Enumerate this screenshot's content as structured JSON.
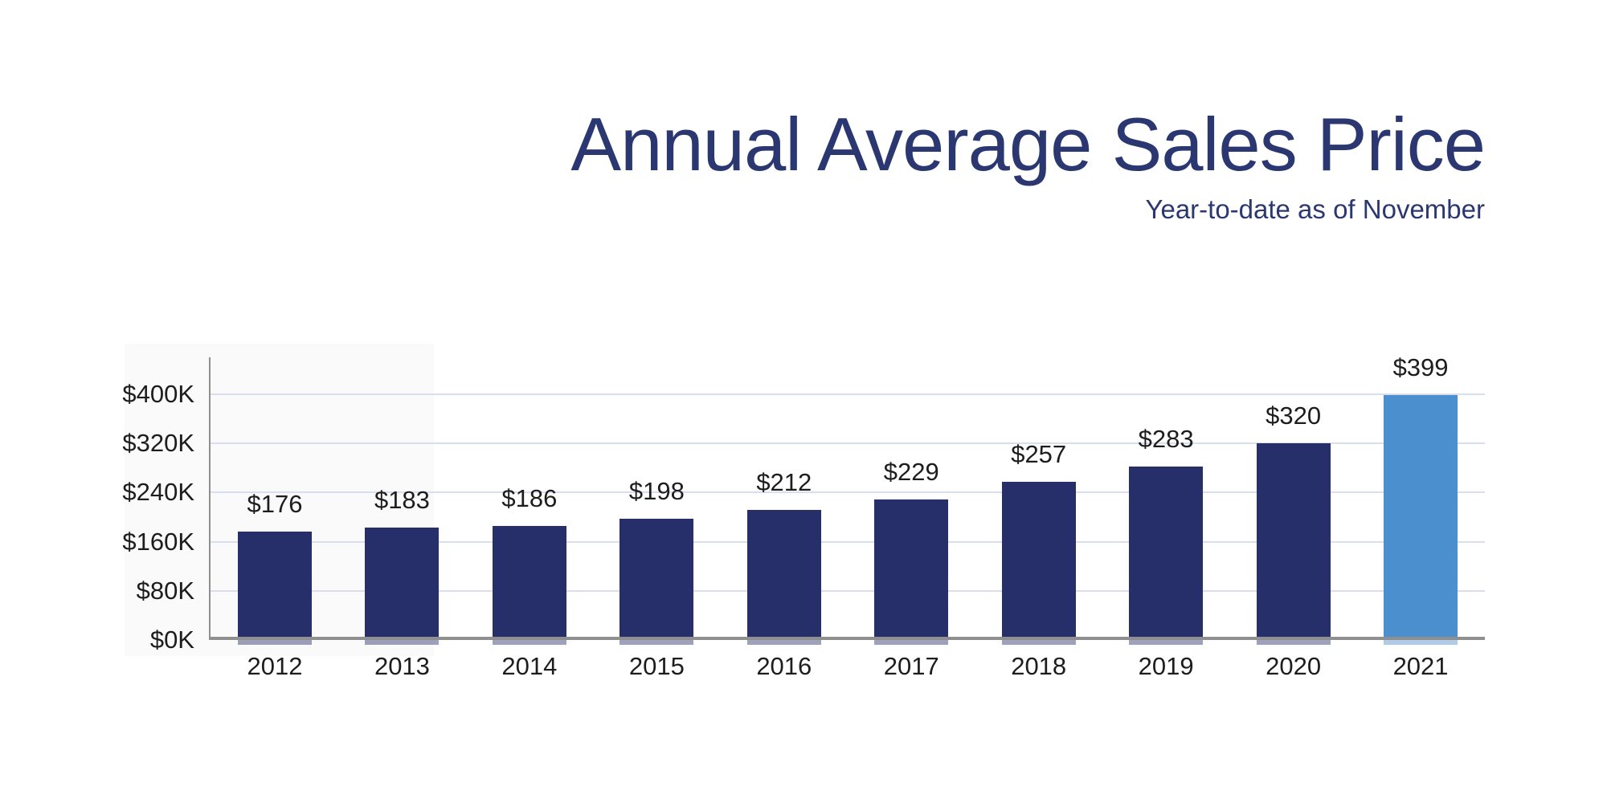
{
  "page": {
    "background_color": "#ffffff"
  },
  "header": {
    "title": "Annual Average Sales Price",
    "subtitle": "Year-to-date as of November",
    "title_color": "#2b3770",
    "subtitle_color": "#2b3770"
  },
  "chart_data": {
    "type": "bar",
    "title": "Annual Average Sales Price",
    "subtitle": "Year-to-date as of November",
    "categories": [
      "2012",
      "2013",
      "2014",
      "2015",
      "2016",
      "2017",
      "2018",
      "2019",
      "2020",
      "2021"
    ],
    "values": [
      176,
      183,
      186,
      198,
      212,
      229,
      257,
      283,
      320,
      399
    ],
    "bar_value_labels": [
      "$176",
      "$183",
      "$186",
      "$198",
      "$212",
      "$229",
      "$257",
      "$283",
      "$320",
      "$399"
    ],
    "values_unit": "USD thousands",
    "xlabel": "",
    "ylabel": "",
    "ylim": [
      0,
      440
    ],
    "yticks": [
      {
        "value": 0,
        "label": "$0K"
      },
      {
        "value": 80,
        "label": "$80K"
      },
      {
        "value": 160,
        "label": "$160K"
      },
      {
        "value": 240,
        "label": "$240K"
      },
      {
        "value": 320,
        "label": "$320K"
      },
      {
        "value": 400,
        "label": "$400K"
      }
    ],
    "grid": true,
    "legend": "none",
    "bar_color": "#262f6a",
    "highlight_bar_color": "#4b8fce",
    "highlight_category": "2021",
    "gridline_color": "#d9deee",
    "axis_line_color": "#8f8f8f",
    "label_color": "#1d1d1d"
  }
}
